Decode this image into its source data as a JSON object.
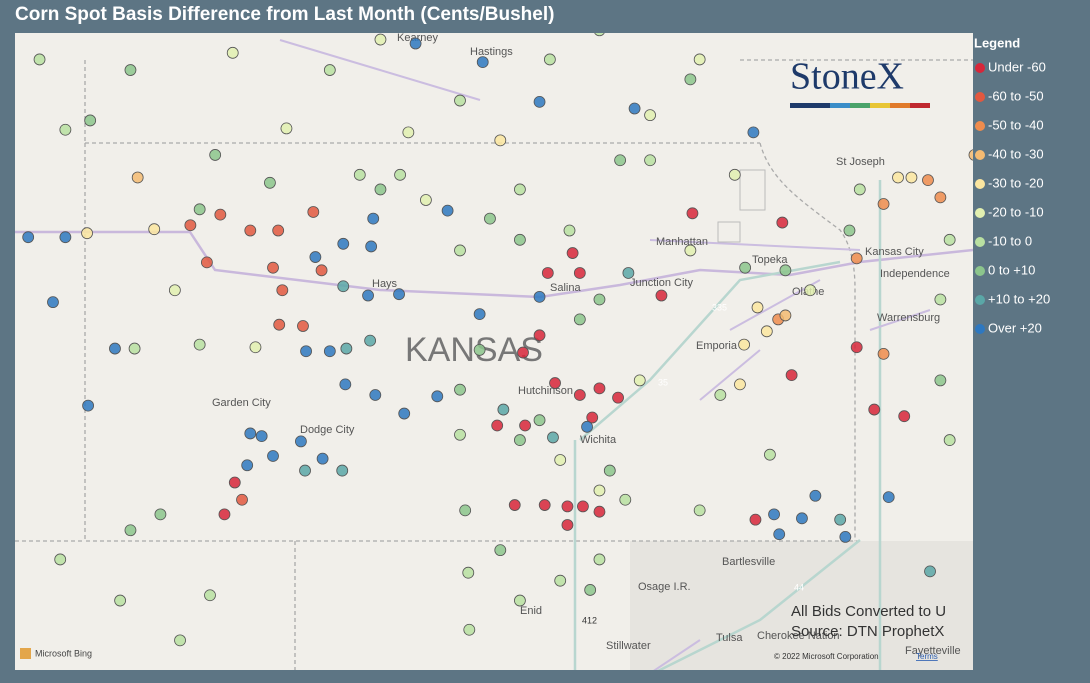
{
  "header": {
    "title": "Corn Spot Basis Difference from Last Month (Cents/Bushel)"
  },
  "legend": {
    "title": "Legend",
    "bins": [
      {
        "name": "Under -60",
        "color": "#d7263a"
      },
      {
        "name": "-60 to -50",
        "color": "#e2583f"
      },
      {
        "name": "-50 to -40",
        "color": "#ef8c4d"
      },
      {
        "name": "-40 to -30",
        "color": "#f5bb72"
      },
      {
        "name": "-30 to -20",
        "color": "#fbe6a0"
      },
      {
        "name": "-20 to -10",
        "color": "#e2f0b0"
      },
      {
        "name": "-10 to 0",
        "color": "#b9e0a1"
      },
      {
        "name": "0 to +10",
        "color": "#8cc58c"
      },
      {
        "name": "+10 to +20",
        "color": "#5aa7a7"
      },
      {
        "name": "Over +20",
        "color": "#2e78c0"
      }
    ]
  },
  "brand": "StoneX",
  "notes": [
    "All Bids Converted to U",
    "Source: DTN ProphetX"
  ],
  "footer": {
    "provider": "Microsoft Bing",
    "copyright": "© 2022 Microsoft Corporation",
    "terms": "Terms"
  },
  "map_labels": {
    "state": "KANSAS",
    "places": [
      "Kearney",
      "Hastings",
      "Hays",
      "Salina",
      "Junction City",
      "Manhattan",
      "Topeka",
      "Olathe",
      "Kansas City",
      "Independence",
      "St Joseph",
      "Warrensburg",
      "Emporia",
      "Hutchinson",
      "Wichita",
      "Garden City",
      "Dodge City",
      "Enid",
      "Bartlesville",
      "Osage I.R.",
      "Tulsa",
      "Cherokee Nation",
      "Stillwater",
      "Fayetteville"
    ],
    "shields": [
      "335",
      "35",
      "412",
      "44"
    ]
  },
  "points": [
    [
      -97.65,
      38.55,
      0
    ],
    [
      -97.81,
      38.42,
      0
    ],
    [
      -97.5,
      38.19,
      0
    ],
    [
      -97.26,
      38.1,
      0
    ],
    [
      -97.07,
      38.15,
      0
    ],
    [
      -96.89,
      38.08,
      0
    ],
    [
      -97.79,
      37.87,
      0
    ],
    [
      -97.14,
      37.93,
      0
    ],
    [
      -97.38,
      37.26,
      0
    ],
    [
      -97.23,
      37.26,
      0
    ],
    [
      -97.38,
      37.12,
      0
    ],
    [
      -97.89,
      37.27,
      0
    ],
    [
      -97.6,
      37.27,
      0
    ],
    [
      -97.07,
      37.22,
      0
    ],
    [
      -97.57,
      39.02,
      0
    ],
    [
      -97.26,
      39.02,
      0
    ],
    [
      -97.33,
      39.17,
      0
    ],
    [
      -96.17,
      39.47,
      0
    ],
    [
      -95.3,
      39.4,
      0
    ],
    [
      -96.47,
      38.85,
      0
    ],
    [
      -94.58,
      38.46,
      0
    ],
    [
      -94.41,
      37.99,
      0
    ],
    [
      -94.12,
      37.94,
      0
    ],
    [
      -95.21,
      38.25,
      0
    ],
    [
      -95.56,
      37.16,
      0
    ],
    [
      -100.6,
      37.44,
      0
    ],
    [
      -100.7,
      37.2,
      0
    ],
    [
      -98.06,
      37.87,
      0
    ],
    [
      -100.74,
      39.46,
      1
    ],
    [
      -101.03,
      39.38,
      1
    ],
    [
      -100.45,
      39.34,
      1
    ],
    [
      -100.18,
      39.34,
      1
    ],
    [
      -99.84,
      39.48,
      1
    ],
    [
      -100.87,
      39.1,
      1
    ],
    [
      -100.23,
      39.06,
      1
    ],
    [
      -99.76,
      39.04,
      1
    ],
    [
      -100.14,
      38.89,
      1
    ],
    [
      -100.17,
      38.63,
      1
    ],
    [
      -99.94,
      38.62,
      1
    ],
    [
      -100.53,
      37.31,
      1
    ],
    [
      -94.58,
      39.13,
      2
    ],
    [
      -94.32,
      39.54,
      2
    ],
    [
      -93.77,
      39.59,
      2
    ],
    [
      -94.32,
      38.41,
      2
    ],
    [
      -93.89,
      39.72,
      2
    ],
    [
      -95.34,
      38.67,
      2
    ],
    [
      -95.27,
      38.7,
      3
    ],
    [
      -101.54,
      39.74,
      3
    ],
    [
      -93.44,
      39.91,
      3
    ],
    [
      -102.03,
      39.32,
      4
    ],
    [
      -101.38,
      39.35,
      4
    ],
    [
      -94.18,
      39.74,
      4
    ],
    [
      -94.05,
      39.74,
      4
    ],
    [
      -95.54,
      38.76,
      4
    ],
    [
      -95.71,
      38.18,
      4
    ],
    [
      -95.67,
      38.48,
      4
    ],
    [
      -95.45,
      38.58,
      4
    ],
    [
      -98.03,
      40.02,
      4
    ],
    [
      -100.62,
      40.68,
      5
    ],
    [
      -100.1,
      40.11,
      5
    ],
    [
      -98.92,
      40.08,
      5
    ],
    [
      -101.18,
      38.89,
      5
    ],
    [
      -100.4,
      38.46,
      5
    ],
    [
      -96.58,
      40.21,
      5
    ],
    [
      -95.76,
      39.76,
      5
    ],
    [
      -96.19,
      39.19,
      5
    ],
    [
      -95.03,
      38.89,
      5
    ],
    [
      -96.68,
      38.21,
      5
    ],
    [
      -97.07,
      37.38,
      5
    ],
    [
      -99.19,
      40.78,
      5
    ],
    [
      -98.75,
      39.57,
      5
    ],
    [
      -97.45,
      37.61,
      5
    ],
    [
      -96.1,
      40.63,
      5
    ],
    [
      -101.57,
      38.45,
      6
    ],
    [
      -100.94,
      38.48,
      6
    ],
    [
      -98.42,
      37.8,
      6
    ],
    [
      -98.34,
      36.76,
      6
    ],
    [
      -98.33,
      36.33,
      6
    ],
    [
      -97.84,
      36.55,
      6
    ],
    [
      -97.45,
      36.7,
      6
    ],
    [
      -97.07,
      36.86,
      6
    ],
    [
      -95.9,
      38.1,
      6
    ],
    [
      -95.42,
      37.65,
      6
    ],
    [
      -96.58,
      39.87,
      6
    ],
    [
      -97.84,
      39.65,
      6
    ],
    [
      -97.36,
      39.34,
      6
    ],
    [
      -98.42,
      39.19,
      6
    ],
    [
      -99.0,
      39.76,
      6
    ],
    [
      -99.39,
      39.76,
      6
    ],
    [
      -102.29,
      36.86,
      6
    ],
    [
      -101.71,
      36.55,
      6
    ],
    [
      -100.84,
      36.59,
      6
    ],
    [
      -101.13,
      36.25,
      6
    ],
    [
      -94.55,
      39.65,
      6
    ],
    [
      -93.68,
      39.27,
      6
    ],
    [
      -93.68,
      37.76,
      6
    ],
    [
      -93.77,
      38.82,
      6
    ],
    [
      -97.55,
      40.63,
      6
    ],
    [
      -97.07,
      40.85,
      6
    ],
    [
      -98.42,
      40.32,
      6
    ],
    [
      -99.68,
      40.55,
      6
    ],
    [
      -102.24,
      40.1,
      6
    ],
    [
      -102.49,
      40.63,
      6
    ],
    [
      -96.1,
      37.23,
      6
    ],
    [
      -96.82,
      37.31,
      6
    ],
    [
      -100.79,
      39.91,
      7
    ],
    [
      -100.26,
      39.7,
      7
    ],
    [
      -99.19,
      39.65,
      7
    ],
    [
      -98.13,
      39.43,
      7
    ],
    [
      -97.84,
      39.27,
      7
    ],
    [
      -96.87,
      39.87,
      7
    ],
    [
      -97.26,
      38.67,
      7
    ],
    [
      -97.07,
      38.82,
      7
    ],
    [
      -98.23,
      38.44,
      7
    ],
    [
      -98.42,
      38.14,
      7
    ],
    [
      -97.65,
      37.91,
      7
    ],
    [
      -97.84,
      37.76,
      7
    ],
    [
      -96.97,
      37.53,
      7
    ],
    [
      -98.37,
      37.23,
      7
    ],
    [
      -97.16,
      36.63,
      7
    ],
    [
      -98.03,
      36.93,
      7
    ],
    [
      -101.32,
      37.2,
      7
    ],
    [
      -101.61,
      37.08,
      7
    ],
    [
      -95.27,
      39.04,
      7
    ],
    [
      -93.77,
      38.21,
      7
    ],
    [
      -94.65,
      39.34,
      7
    ],
    [
      -101.61,
      40.55,
      7
    ],
    [
      -100.94,
      39.5,
      7
    ],
    [
      -102.0,
      40.17,
      7
    ],
    [
      -96.19,
      40.48,
      7
    ],
    [
      -95.66,
      39.06,
      7
    ],
    [
      -99.55,
      38.92,
      8
    ],
    [
      -99.29,
      38.51,
      8
    ],
    [
      -99.52,
      38.45,
      8
    ],
    [
      -99.92,
      37.53,
      8
    ],
    [
      -99.56,
      37.53,
      8
    ],
    [
      -98.0,
      37.99,
      8
    ],
    [
      -96.79,
      39.02,
      8
    ],
    [
      -94.74,
      37.16,
      8
    ],
    [
      -93.87,
      36.77,
      8
    ],
    [
      -97.52,
      37.78,
      8
    ],
    [
      -99.26,
      39.43,
      9
    ],
    [
      -99.82,
      39.14,
      9
    ],
    [
      -99.55,
      39.24,
      9
    ],
    [
      -99.28,
      39.22,
      9
    ],
    [
      -99.31,
      38.85,
      9
    ],
    [
      -99.01,
      38.86,
      9
    ],
    [
      -99.91,
      38.43,
      9
    ],
    [
      -99.68,
      38.43,
      9
    ],
    [
      -99.53,
      38.18,
      9
    ],
    [
      -99.24,
      38.1,
      9
    ],
    [
      -98.96,
      37.96,
      9
    ],
    [
      -100.45,
      37.81,
      9
    ],
    [
      -100.34,
      37.79,
      9
    ],
    [
      -99.96,
      37.75,
      9
    ],
    [
      -99.75,
      37.62,
      9
    ],
    [
      -100.48,
      37.57,
      9
    ],
    [
      -100.23,
      37.64,
      9
    ],
    [
      -98.54,
      39.49,
      9
    ],
    [
      -97.65,
      38.84,
      9
    ],
    [
      -98.23,
      38.71,
      9
    ],
    [
      -98.64,
      38.09,
      9
    ],
    [
      -97.19,
      37.86,
      9
    ],
    [
      -94.98,
      37.34,
      9
    ],
    [
      -95.38,
      37.2,
      9
    ],
    [
      -95.11,
      37.17,
      9
    ],
    [
      -94.69,
      37.03,
      9
    ],
    [
      -95.33,
      37.05,
      9
    ],
    [
      -94.27,
      37.33,
      9
    ],
    [
      -102.36,
      38.8,
      9
    ],
    [
      -102.6,
      39.29,
      9
    ],
    [
      -102.24,
      39.29,
      9
    ],
    [
      -101.76,
      38.45,
      9
    ],
    [
      -102.02,
      38.02,
      9
    ],
    [
      -98.2,
      40.61,
      9
    ],
    [
      -97.65,
      40.31,
      9
    ],
    [
      -96.73,
      40.26,
      9
    ],
    [
      -98.85,
      40.75,
      9
    ],
    [
      -95.58,
      40.08,
      9
    ]
  ]
}
